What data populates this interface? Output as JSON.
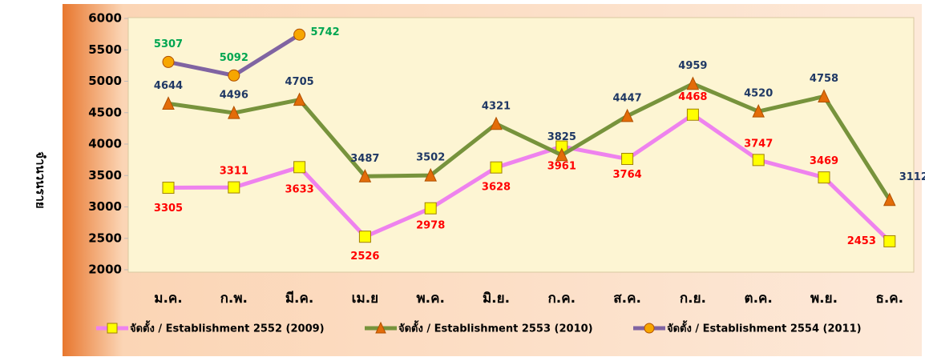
{
  "chart_data": {
    "type": "line",
    "y_label": "จำนวนราย",
    "categories": [
      "ม.ค.",
      "ก.พ.",
      "มี.ค.",
      "เม.ย",
      "พ.ค.",
      "มิ.ย.",
      "ก.ค.",
      "ส.ค.",
      "ก.ย.",
      "ต.ค.",
      "พ.ย.",
      "ธ.ค."
    ],
    "series": [
      {
        "name": "จัดตั้ง / Establishment 2552 (2009)",
        "color": "#ee82ee",
        "marker": "square",
        "marker_color": "#ffff00",
        "label_color": "#ff0000",
        "values": [
          3305,
          3311,
          3633,
          2526,
          2978,
          3628,
          3961,
          3764,
          4468,
          3747,
          3469,
          2453
        ]
      },
      {
        "name": "จัดตั้ง / Establishment 2553 (2010)",
        "color": "#77933c",
        "marker": "triangle",
        "marker_color": "#e36c09",
        "label_color": "#1f3864",
        "values": [
          4644,
          4496,
          4705,
          3487,
          3502,
          4321,
          3825,
          4447,
          4959,
          4520,
          4758,
          3112
        ]
      },
      {
        "name": "จัดตั้ง / Establishment 2554 (2011)",
        "color": "#8064a2",
        "marker": "circle",
        "marker_color": "#f7a600",
        "label_color": "#00a651",
        "values": [
          5307,
          5092,
          5742,
          null,
          null,
          null,
          null,
          null,
          null,
          null,
          null,
          null
        ]
      }
    ],
    "ylim": [
      2000,
      6000
    ],
    "yticks": [
      2000,
      2500,
      3000,
      3500,
      4000,
      4500,
      5000,
      5500,
      6000
    ],
    "grid": false,
    "legend": "bottom"
  }
}
